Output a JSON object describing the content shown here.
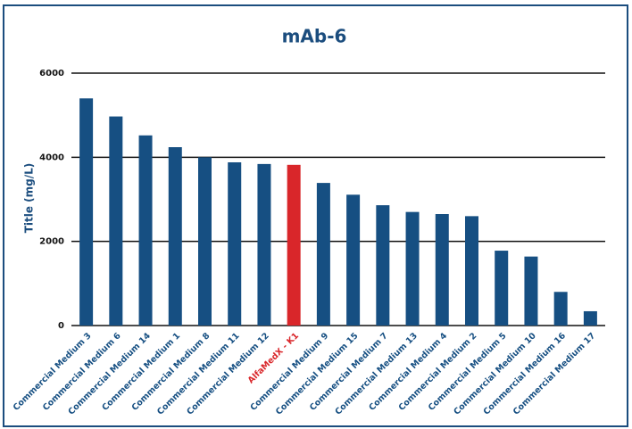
{
  "chart_data": {
    "type": "bar",
    "title": "mAb-6",
    "y_label": "Title (mg/L)",
    "categories": [
      "Commercial Medium 3",
      "Commercial Medium 6",
      "Commercial Medium 14",
      "Commercial Medium 1",
      "Commercial Medium 8",
      "Commercial Medium 11",
      "Commercial Medium 12",
      "AlfaMedX - K1",
      "Commercial Medium 9",
      "Commercial Medium 15",
      "Commercial Medium 7",
      "Commercial Medium 13",
      "Commercial Medium 4",
      "Commercial Medium 2",
      "Commercial Medium 5",
      "Commercial Medium 10",
      "Commercial Medium 16",
      "Commercial Medium 17"
    ],
    "values": [
      5400,
      4970,
      4520,
      4240,
      4000,
      3880,
      3840,
      3820,
      3390,
      3110,
      2860,
      2700,
      2650,
      2600,
      1780,
      1640,
      800,
      340
    ],
    "colors": [
      "#164f82",
      "#164f82",
      "#164f82",
      "#164f82",
      "#164f82",
      "#164f82",
      "#164f82",
      "#d9262a",
      "#164f82",
      "#164f82",
      "#164f82",
      "#164f82",
      "#164f82",
      "#164f82",
      "#164f82",
      "#164f82",
      "#164f82",
      "#164f82"
    ],
    "ylim": [
      0,
      6000
    ],
    "yticks": [
      0,
      2000,
      4000,
      6000
    ],
    "grid": true
  }
}
